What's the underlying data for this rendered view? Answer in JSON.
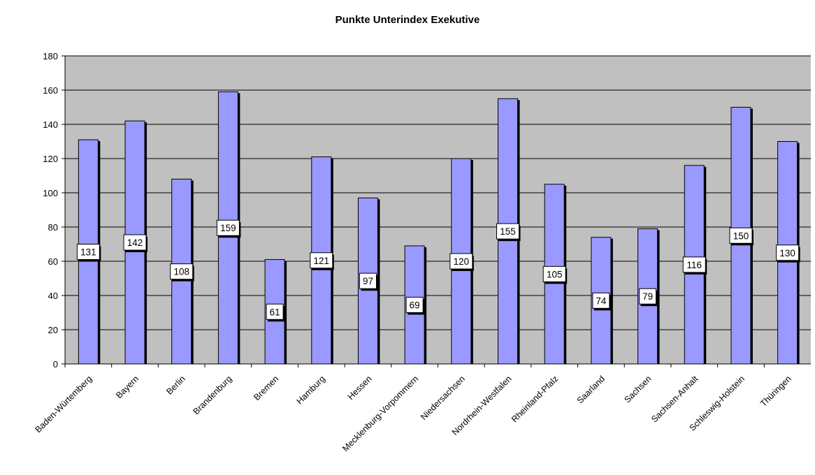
{
  "chart_data": {
    "type": "bar",
    "title": "Punkte Unterindex Exekutive",
    "xlabel": "",
    "ylabel": "",
    "categories": [
      "Baden-Würtemberg",
      "Bayern",
      "Berlin",
      "Brandenburg",
      "Bremen",
      "Hamburg",
      "Hessen",
      "Mecklenburg-Vorpommern",
      "Niedersachsen",
      "Nordrhein-Westfalen",
      "Rheinland-Pfalz",
      "Saarland",
      "Sachsen",
      "Sachsen-Anhalt",
      "Schleswig-Holstein",
      "Thüringen"
    ],
    "values": [
      131,
      142,
      108,
      159,
      61,
      121,
      97,
      69,
      120,
      155,
      105,
      74,
      79,
      116,
      150,
      130
    ],
    "ylim": [
      0,
      180
    ],
    "yticks": [
      0,
      20,
      40,
      60,
      80,
      100,
      120,
      140,
      160,
      180
    ],
    "grid": true,
    "legend": "none",
    "colors": {
      "bar": "#9999ff",
      "bar_shadow": "#000000",
      "plot_background": "#c0c0c0",
      "gridline": "#000000",
      "label_box": "#ffffff"
    }
  }
}
